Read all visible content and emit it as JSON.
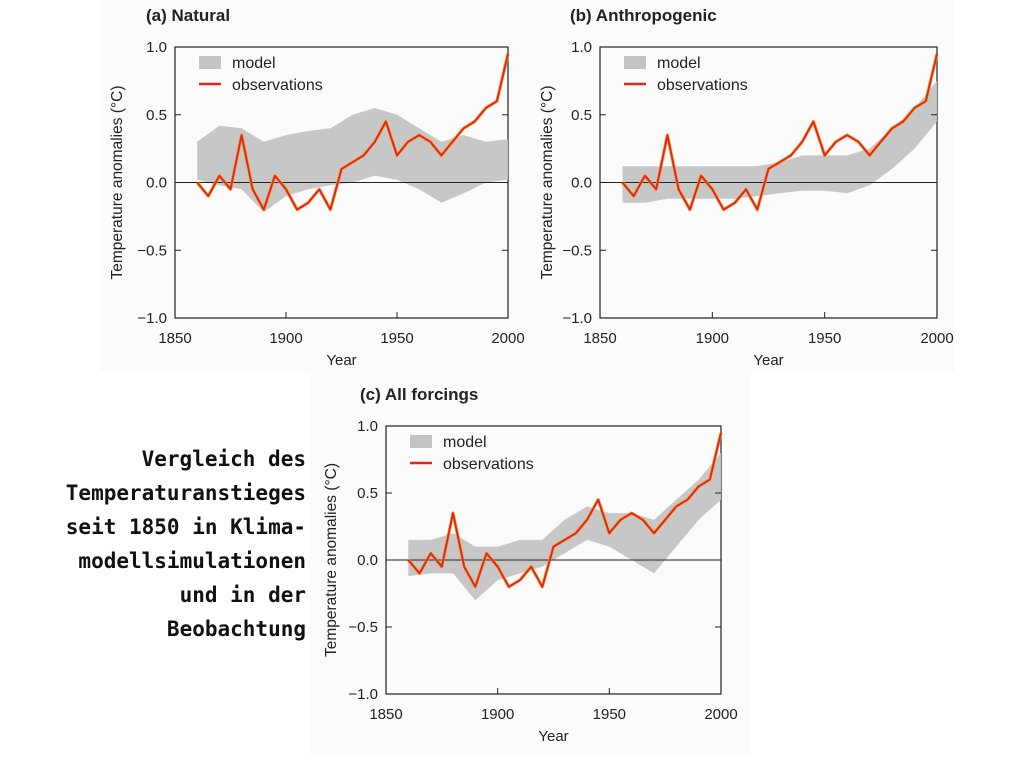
{
  "caption": {
    "lines": [
      "Vergleich des",
      "Temperaturanstieges",
      "seit 1850 in Klima-",
      "modellsimulationen",
      "und in der",
      "Beobachtung"
    ]
  },
  "colors": {
    "model_band": "#c4c4c4",
    "observations": "#e3261d",
    "observations_halo": "#f5a623",
    "axis": "#222222"
  },
  "chart_data": [
    {
      "type": "line",
      "id": "natural",
      "title": "(a) Natural",
      "xlabel": "Year",
      "ylabel": "Temperature anomalies (°C)",
      "xlim": [
        1850,
        2000
      ],
      "ylim": [
        -1.0,
        1.0
      ],
      "xticks": [
        1850,
        1900,
        1950,
        2000
      ],
      "yticks": [
        1.0,
        0.5,
        0.0,
        -0.5,
        -1.0
      ],
      "ytick_labels": [
        "1.0",
        "0.5",
        "0.0",
        "−0.5",
        "−1.0"
      ],
      "legend": [
        "model",
        "observations"
      ],
      "legend_position": "top-left",
      "series": [
        {
          "name": "model",
          "kind": "band",
          "x": [
            1860,
            1870,
            1880,
            1890,
            1900,
            1910,
            1920,
            1930,
            1940,
            1950,
            1960,
            1970,
            1980,
            1990,
            2000
          ],
          "low": [
            0.02,
            -0.02,
            -0.05,
            -0.22,
            -0.1,
            -0.05,
            -0.02,
            0.0,
            0.05,
            0.02,
            -0.05,
            -0.15,
            -0.08,
            0.0,
            0.02
          ],
          "high": [
            0.3,
            0.42,
            0.4,
            0.3,
            0.35,
            0.38,
            0.4,
            0.5,
            0.55,
            0.5,
            0.4,
            0.3,
            0.35,
            0.3,
            0.32
          ]
        },
        {
          "name": "observations",
          "kind": "line",
          "x": [
            1860,
            1865,
            1870,
            1875,
            1880,
            1885,
            1890,
            1895,
            1900,
            1905,
            1910,
            1915,
            1920,
            1925,
            1930,
            1935,
            1940,
            1945,
            1950,
            1955,
            1960,
            1965,
            1970,
            1975,
            1980,
            1985,
            1990,
            1995,
            2000
          ],
          "y": [
            0.0,
            -0.1,
            0.05,
            -0.05,
            0.35,
            -0.05,
            -0.2,
            0.05,
            -0.05,
            -0.2,
            -0.15,
            -0.05,
            -0.2,
            0.1,
            0.15,
            0.2,
            0.3,
            0.45,
            0.2,
            0.3,
            0.35,
            0.3,
            0.2,
            0.3,
            0.4,
            0.45,
            0.55,
            0.6,
            0.95
          ]
        }
      ]
    },
    {
      "type": "line",
      "id": "anthropogenic",
      "title": "(b) Anthropogenic",
      "xlabel": "Year",
      "ylabel": "Temperature anomalies (°C)",
      "xlim": [
        1850,
        2000
      ],
      "ylim": [
        -1.0,
        1.0
      ],
      "xticks": [
        1850,
        1900,
        1950,
        2000
      ],
      "yticks": [
        1.0,
        0.5,
        0.0,
        -0.5,
        -1.0
      ],
      "ytick_labels": [
        "1.0",
        "0.5",
        "0.0",
        "−0.5",
        "−1.0"
      ],
      "legend": [
        "model",
        "observations"
      ],
      "legend_position": "top-left",
      "series": [
        {
          "name": "model",
          "kind": "band",
          "x": [
            1860,
            1870,
            1880,
            1890,
            1900,
            1910,
            1920,
            1930,
            1940,
            1950,
            1960,
            1970,
            1980,
            1990,
            2000
          ],
          "low": [
            -0.15,
            -0.15,
            -0.12,
            -0.12,
            -0.12,
            -0.12,
            -0.1,
            -0.08,
            -0.06,
            -0.06,
            -0.08,
            -0.02,
            0.1,
            0.25,
            0.45
          ],
          "high": [
            0.12,
            0.12,
            0.12,
            0.12,
            0.12,
            0.12,
            0.12,
            0.15,
            0.2,
            0.2,
            0.2,
            0.25,
            0.4,
            0.55,
            0.75
          ]
        },
        {
          "name": "observations",
          "kind": "line",
          "x": [
            1860,
            1865,
            1870,
            1875,
            1880,
            1885,
            1890,
            1895,
            1900,
            1905,
            1910,
            1915,
            1920,
            1925,
            1930,
            1935,
            1940,
            1945,
            1950,
            1955,
            1960,
            1965,
            1970,
            1975,
            1980,
            1985,
            1990,
            1995,
            2000
          ],
          "y": [
            0.0,
            -0.1,
            0.05,
            -0.05,
            0.35,
            -0.05,
            -0.2,
            0.05,
            -0.05,
            -0.2,
            -0.15,
            -0.05,
            -0.2,
            0.1,
            0.15,
            0.2,
            0.3,
            0.45,
            0.2,
            0.3,
            0.35,
            0.3,
            0.2,
            0.3,
            0.4,
            0.45,
            0.55,
            0.6,
            0.95
          ]
        }
      ]
    },
    {
      "type": "line",
      "id": "all-forcings",
      "title": "(c) All forcings",
      "xlabel": "Year",
      "ylabel": "Temperature anomalies (°C)",
      "xlim": [
        1850,
        2000
      ],
      "ylim": [
        -1.0,
        1.0
      ],
      "xticks": [
        1850,
        1900,
        1950,
        2000
      ],
      "yticks": [
        1.0,
        0.5,
        0.0,
        -0.5,
        -1.0
      ],
      "ytick_labels": [
        "1.0",
        "0.5",
        "0.0",
        "−0.5",
        "−1.0"
      ],
      "legend": [
        "model",
        "observations"
      ],
      "legend_position": "top-left",
      "series": [
        {
          "name": "model",
          "kind": "band",
          "x": [
            1860,
            1870,
            1880,
            1890,
            1900,
            1910,
            1920,
            1930,
            1940,
            1950,
            1960,
            1970,
            1980,
            1990,
            2000
          ],
          "low": [
            -0.12,
            -0.1,
            -0.1,
            -0.3,
            -0.15,
            -0.1,
            -0.05,
            0.05,
            0.15,
            0.1,
            0.0,
            -0.1,
            0.1,
            0.3,
            0.45
          ],
          "high": [
            0.15,
            0.15,
            0.2,
            0.1,
            0.1,
            0.15,
            0.15,
            0.3,
            0.4,
            0.35,
            0.35,
            0.3,
            0.45,
            0.6,
            0.8
          ]
        },
        {
          "name": "observations",
          "kind": "line",
          "x": [
            1860,
            1865,
            1870,
            1875,
            1880,
            1885,
            1890,
            1895,
            1900,
            1905,
            1910,
            1915,
            1920,
            1925,
            1930,
            1935,
            1940,
            1945,
            1950,
            1955,
            1960,
            1965,
            1970,
            1975,
            1980,
            1985,
            1990,
            1995,
            2000
          ],
          "y": [
            0.0,
            -0.1,
            0.05,
            -0.05,
            0.35,
            -0.05,
            -0.2,
            0.05,
            -0.05,
            -0.2,
            -0.15,
            -0.05,
            -0.2,
            0.1,
            0.15,
            0.2,
            0.3,
            0.45,
            0.2,
            0.3,
            0.35,
            0.3,
            0.2,
            0.3,
            0.4,
            0.45,
            0.55,
            0.6,
            0.95
          ]
        }
      ]
    }
  ]
}
